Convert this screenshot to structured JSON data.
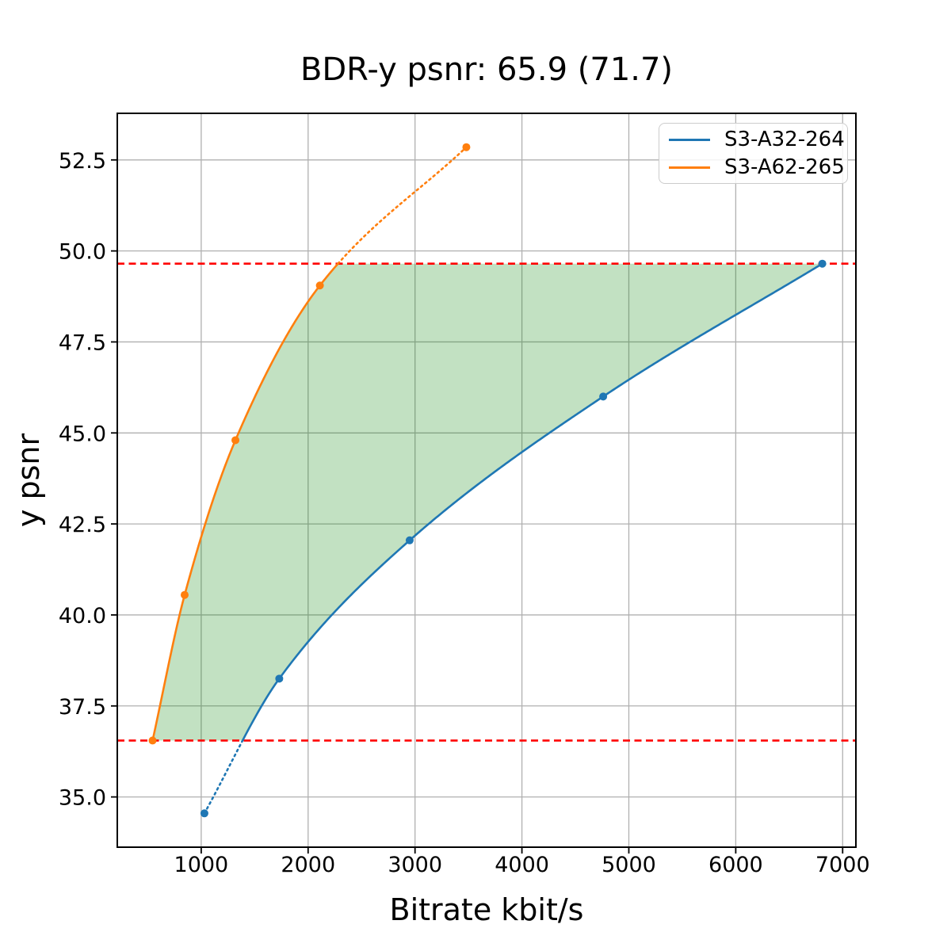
{
  "chart_data": {
    "type": "line",
    "title": "BDR-y psnr: 65.9 (71.7)",
    "xlabel": "Bitrate kbit/s",
    "ylabel": "y psnr",
    "xlim": [
      215,
      7124
    ],
    "ylim": [
      33.62,
      53.78
    ],
    "x_ticks": [
      1000,
      2000,
      3000,
      4000,
      5000,
      6000,
      7000
    ],
    "x_tick_labels": [
      "1000",
      "2000",
      "3000",
      "4000",
      "5000",
      "6000",
      "7000"
    ],
    "y_ticks": [
      35.0,
      37.5,
      40.0,
      42.5,
      45.0,
      47.5,
      50.0,
      52.5
    ],
    "y_tick_labels": [
      "35.0",
      "37.5",
      "40.0",
      "42.5",
      "45.0",
      "47.5",
      "50.0",
      "52.5"
    ],
    "grid": true,
    "grid_color": "#b0b0b0",
    "legend_position": "upper right",
    "series": [
      {
        "name": "S3-A32-264",
        "color": "#1f77b4",
        "marker": "circle",
        "x": [
          1030,
          1730,
          2950,
          4760,
          6810
        ],
        "y": [
          34.55,
          38.25,
          42.05,
          46.0,
          49.65
        ]
      },
      {
        "name": "S3-A62-265",
        "color": "#ff7f0e",
        "marker": "circle",
        "x": [
          545,
          845,
          1320,
          2110,
          3480
        ],
        "y": [
          36.55,
          40.55,
          44.8,
          49.05,
          52.85
        ]
      }
    ],
    "reference_lines": {
      "values": [
        36.55,
        49.65
      ],
      "color": "#ff0000",
      "style": "dashed"
    },
    "shaded_region": {
      "fill_color": "#008000",
      "alpha": 0.24
    },
    "style_note_dotted": "curve segments outside the overlap range are dotted"
  }
}
